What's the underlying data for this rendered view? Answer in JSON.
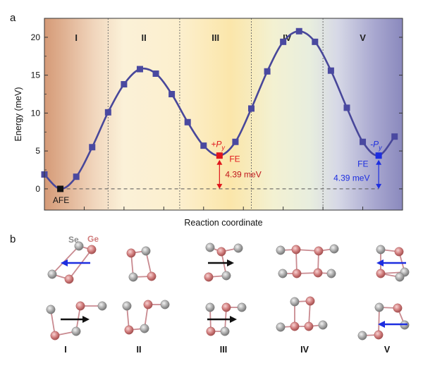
{
  "panels": {
    "a": "a",
    "b": "b"
  },
  "chart_data": {
    "type": "line",
    "xlabel": "Reaction coordinate",
    "ylabel": "Energy (meV)",
    "ylim": [
      -2.8,
      22.5
    ],
    "yticks": [
      0,
      5,
      10,
      15,
      20
    ],
    "xlim": [
      0,
      9
    ],
    "region_labels": [
      "I",
      "II",
      "III",
      "IV",
      "V"
    ],
    "region_boundaries": [
      1.6,
      3.4,
      5.2,
      7.0
    ],
    "region_colors": [
      "#d59a77",
      "#fbf1d8",
      "#fbe6aa",
      "#eef0df",
      "#8a89bd"
    ],
    "series": [
      {
        "x": [
          0,
          0.4,
          0.8,
          1.2,
          1.6,
          2.0,
          2.4,
          2.8,
          3.2,
          3.6,
          4.0,
          4.4,
          4.8,
          5.2,
          5.6,
          6.0,
          6.4,
          6.8,
          7.2,
          7.6,
          8.0,
          8.4,
          8.8
        ],
        "y": [
          1.9,
          0,
          1.6,
          5.5,
          10.1,
          13.8,
          15.8,
          15.2,
          12.5,
          8.8,
          5.7,
          4.39,
          6.2,
          10.6,
          15.5,
          19.4,
          20.8,
          19.4,
          15.6,
          10.7,
          6.2,
          4.39,
          6.9
        ]
      }
    ],
    "line_color": "#48479a",
    "marker_color": "#4a49a0",
    "special_points": [
      {
        "x": 0.4,
        "y": 0,
        "color": "#111111",
        "label": "AFE"
      },
      {
        "x": 4.4,
        "y": 4.39,
        "color": "#e0161c",
        "label": "FE",
        "polar": "+P",
        "sub": "y"
      },
      {
        "x": 8.4,
        "y": 4.39,
        "color": "#1d2ee0",
        "label": "FE",
        "polar": "-P",
        "sub": "y"
      }
    ],
    "annotations": [
      {
        "x": 4.4,
        "text": "4.39 meV",
        "color": "#c0161c"
      },
      {
        "x": 8.4,
        "text": "4.39 meV",
        "color": "#1d2ee0"
      }
    ]
  },
  "structures": {
    "element_labels": {
      "Se": "Se",
      "Ge": "Ge"
    },
    "colors": {
      "Se": "#9a9a9a",
      "Ge": "#d07c7c",
      "bond": "#c98a90",
      "arrow_black": "#111111",
      "arrow_blue": "#1d2ee0"
    },
    "bottom_labels": [
      "I",
      "II",
      "III",
      "IV",
      "V"
    ]
  }
}
